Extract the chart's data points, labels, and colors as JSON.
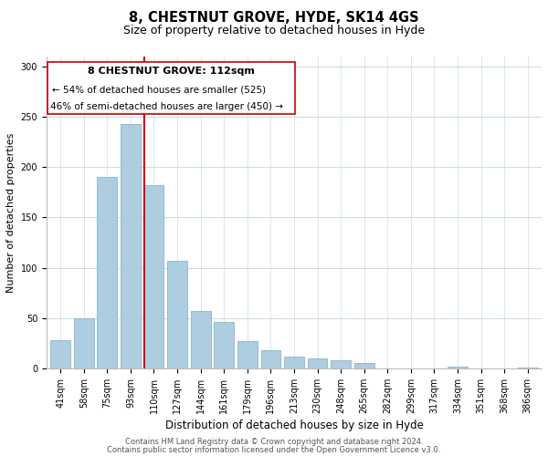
{
  "title": "8, CHESTNUT GROVE, HYDE, SK14 4GS",
  "subtitle": "Size of property relative to detached houses in Hyde",
  "xlabel": "Distribution of detached houses by size in Hyde",
  "ylabel": "Number of detached properties",
  "bar_labels": [
    "41sqm",
    "58sqm",
    "75sqm",
    "93sqm",
    "110sqm",
    "127sqm",
    "144sqm",
    "161sqm",
    "179sqm",
    "196sqm",
    "213sqm",
    "230sqm",
    "248sqm",
    "265sqm",
    "282sqm",
    "299sqm",
    "317sqm",
    "334sqm",
    "351sqm",
    "368sqm",
    "386sqm"
  ],
  "bar_values": [
    28,
    50,
    190,
    243,
    182,
    107,
    57,
    46,
    27,
    18,
    12,
    10,
    8,
    5,
    0,
    0,
    0,
    2,
    0,
    0,
    1
  ],
  "bar_color": "#aecde1",
  "bar_edge_color": "#8ab4cc",
  "highlight_bar_index": 4,
  "highlight_line_color": "#cc0000",
  "ylim": [
    0,
    310
  ],
  "yticks": [
    0,
    50,
    100,
    150,
    200,
    250,
    300
  ],
  "annotation_title": "8 CHESTNUT GROVE: 112sqm",
  "annotation_line1": "← 54% of detached houses are smaller (525)",
  "annotation_line2": "46% of semi-detached houses are larger (450) →",
  "footer_line1": "Contains HM Land Registry data © Crown copyright and database right 2024.",
  "footer_line2": "Contains public sector information licensed under the Open Government Licence v3.0.",
  "background_color": "#ffffff",
  "grid_color": "#ccdde8",
  "title_fontsize": 10.5,
  "subtitle_fontsize": 9,
  "xlabel_fontsize": 8.5,
  "ylabel_fontsize": 8,
  "tick_fontsize": 7,
  "footer_fontsize": 6
}
